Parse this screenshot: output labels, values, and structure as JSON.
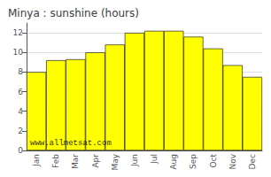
{
  "chart_data": {
    "type": "bar",
    "title": "Minya : sunshine (hours)",
    "categories": [
      "Jan",
      "Feb",
      "Mar",
      "Apr",
      "May",
      "Jun",
      "Jul",
      "Aug",
      "Sep",
      "Oct",
      "Nov",
      "Dec"
    ],
    "values": [
      8.0,
      9.2,
      9.3,
      10.0,
      10.8,
      12.0,
      12.2,
      12.2,
      11.6,
      10.4,
      8.7,
      7.5
    ],
    "color": "#FFFF00",
    "ylim": [
      0,
      13
    ],
    "yticks": [
      0,
      2,
      4,
      6,
      8,
      10,
      12
    ],
    "grid": true,
    "annotations": [
      "www.allmetsat.com"
    ]
  }
}
